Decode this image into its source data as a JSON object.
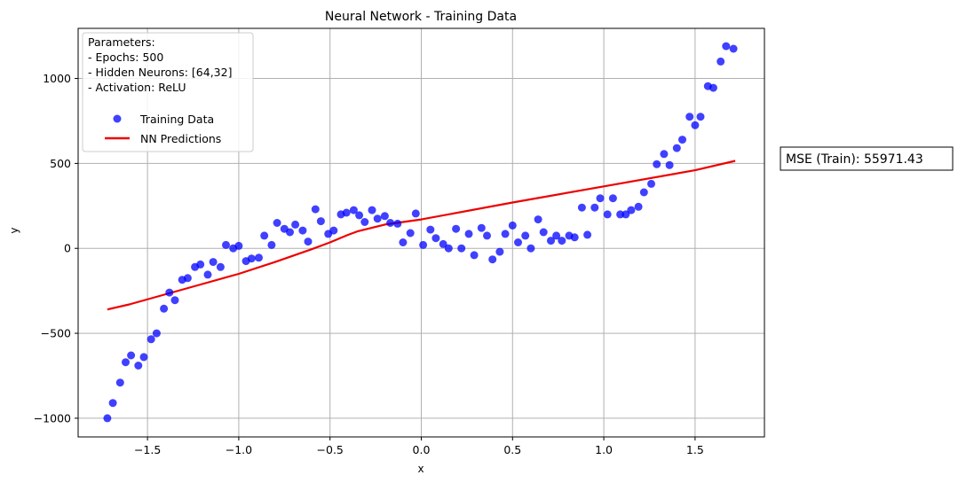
{
  "chart_data": {
    "type": "scatter",
    "title": "Neural Network - Training Data",
    "xlabel": "x",
    "ylabel": "y",
    "xlim": [
      -1.88,
      1.88
    ],
    "ylim": [
      -1110,
      1295
    ],
    "xticks": [
      -1.5,
      -1.0,
      -0.5,
      0.0,
      0.5,
      1.0,
      1.5
    ],
    "xtick_labels": [
      "−1.5",
      "−1.0",
      "−0.5",
      "0.0",
      "0.5",
      "1.0",
      "1.5"
    ],
    "yticks": [
      -1000,
      -500,
      0,
      500,
      1000
    ],
    "ytick_labels": [
      "−1000",
      "−500",
      "0",
      "500",
      "1000"
    ],
    "grid": true,
    "legend_placement": "top-left",
    "parameters_text": [
      "Parameters:",
      "- Epochs: 500",
      "- Hidden Neurons: [64,32]",
      "- Activation: ReLU"
    ],
    "mse_label": "MSE (Train): 55971.43",
    "series": [
      {
        "name": "Training Data",
        "kind": "scatter",
        "color": "#0000ff",
        "x": [
          -1.72,
          -1.69,
          -1.65,
          -1.62,
          -1.59,
          -1.55,
          -1.52,
          -1.48,
          -1.45,
          -1.41,
          -1.38,
          -1.35,
          -1.31,
          -1.28,
          -1.24,
          -1.21,
          -1.17,
          -1.14,
          -1.1,
          -1.07,
          -1.03,
          -1.0,
          -0.96,
          -0.93,
          -0.89,
          -0.86,
          -0.82,
          -0.79,
          -0.75,
          -0.72,
          -0.69,
          -0.65,
          -0.62,
          -0.58,
          -0.55,
          -0.51,
          -0.48,
          -0.44,
          -0.41,
          -0.37,
          -0.34,
          -0.31,
          -0.27,
          -0.24,
          -0.2,
          -0.17,
          -0.13,
          -0.1,
          -0.06,
          -0.03,
          0.01,
          0.05,
          0.08,
          0.12,
          0.15,
          0.19,
          0.22,
          0.26,
          0.29,
          0.33,
          0.36,
          0.39,
          0.43,
          0.46,
          0.5,
          0.53,
          0.57,
          0.6,
          0.64,
          0.67,
          0.71,
          0.74,
          0.77,
          0.81,
          0.84,
          0.88,
          0.91,
          0.95,
          0.98,
          1.02,
          1.05,
          1.09,
          1.12,
          1.15,
          1.19,
          1.22,
          1.26,
          1.29,
          1.33,
          1.36,
          1.4,
          1.43,
          1.47,
          1.5,
          1.53,
          1.57,
          1.6,
          1.64,
          1.67,
          1.71
        ],
        "y": [
          -1000,
          -910,
          -790,
          -670,
          -630,
          -690,
          -640,
          -535,
          -500,
          -355,
          -260,
          -305,
          -185,
          -175,
          -110,
          -95,
          -155,
          -80,
          -110,
          20,
          0,
          15,
          -75,
          -60,
          -55,
          75,
          20,
          150,
          115,
          95,
          140,
          105,
          40,
          230,
          160,
          85,
          105,
          200,
          210,
          225,
          195,
          155,
          225,
          175,
          190,
          150,
          145,
          35,
          90,
          205,
          20,
          110,
          60,
          25,
          0,
          115,
          0,
          85,
          -40,
          120,
          75,
          -65,
          -20,
          85,
          135,
          35,
          75,
          0,
          170,
          95,
          45,
          75,
          45,
          75,
          65,
          240,
          80,
          240,
          295,
          200,
          295,
          200,
          200,
          225,
          245,
          330,
          380,
          495,
          555,
          490,
          590,
          640,
          775,
          725,
          775,
          955,
          945,
          1100,
          1190,
          1175
        ]
      },
      {
        "name": "NN Predictions",
        "kind": "line",
        "color": "#ee0000",
        "x": [
          -1.72,
          -1.6,
          -1.4,
          -1.2,
          -1.0,
          -0.8,
          -0.6,
          -0.5,
          -0.4,
          -0.35,
          -0.2,
          0.0,
          0.5,
          1.0,
          1.5,
          1.72
        ],
        "y": [
          -360,
          -330,
          -270,
          -210,
          -150,
          -80,
          -5,
          35,
          80,
          100,
          140,
          170,
          270,
          365,
          460,
          515
        ]
      }
    ]
  }
}
